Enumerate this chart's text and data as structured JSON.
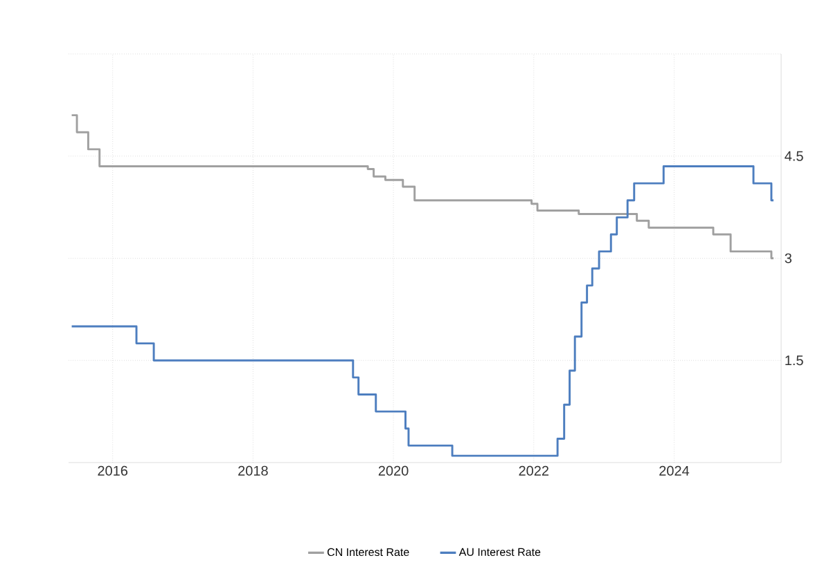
{
  "chart_data": {
    "type": "step",
    "xlim": [
      "2015-05-15",
      "2025-07-10"
    ],
    "ylim": [
      0,
      6
    ],
    "xticks": [
      "2016",
      "2018",
      "2020",
      "2022",
      "2024"
    ],
    "yticks": [
      1.5,
      3,
      4.5,
      {
        "value": 6,
        "label": null
      }
    ],
    "grid": true,
    "legend": "bottom",
    "series": [
      {
        "name": "CN Interest Rate",
        "color": "#a0a0a0",
        "x": [
          "2015-06-01",
          "2015-06-28",
          "2015-08-26",
          "2015-10-24",
          "2019-08-20",
          "2019-09-20",
          "2019-11-20",
          "2020-02-20",
          "2020-04-20",
          "2021-12-20",
          "2022-01-20",
          "2022-08-22",
          "2023-06-20",
          "2023-08-21",
          "2024-07-22",
          "2024-10-21",
          "2025-05-20",
          "2025-05-31"
        ],
        "values": [
          5.1,
          4.85,
          4.6,
          4.35,
          4.31,
          4.2,
          4.15,
          4.05,
          3.85,
          3.8,
          3.7,
          3.65,
          3.55,
          3.45,
          3.35,
          3.1,
          3.0,
          3.0
        ]
      },
      {
        "name": "AU Interest Rate",
        "color": "#4d7ebf",
        "x": [
          "2015-06-01",
          "2016-05-03",
          "2016-08-02",
          "2019-06-04",
          "2019-07-02",
          "2019-10-01",
          "2020-03-03",
          "2020-03-19",
          "2020-11-03",
          "2022-05-03",
          "2022-06-07",
          "2022-07-05",
          "2022-08-02",
          "2022-09-06",
          "2022-10-04",
          "2022-11-01",
          "2022-12-06",
          "2023-02-07",
          "2023-03-07",
          "2023-05-02",
          "2023-06-06",
          "2023-11-07",
          "2025-02-18",
          "2025-05-20",
          "2025-05-31"
        ],
        "values": [
          2.0,
          1.75,
          1.5,
          1.25,
          1.0,
          0.75,
          0.5,
          0.25,
          0.1,
          0.35,
          0.85,
          1.35,
          1.85,
          2.35,
          2.6,
          2.85,
          3.1,
          3.35,
          3.6,
          3.85,
          4.1,
          4.35,
          4.1,
          3.85,
          3.85
        ]
      }
    ]
  }
}
